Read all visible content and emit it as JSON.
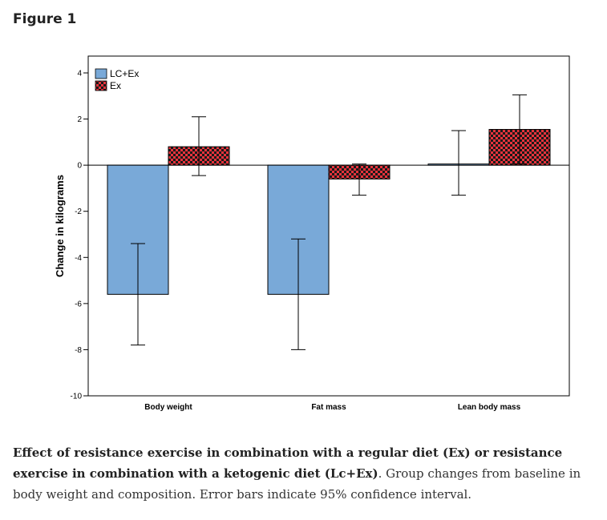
{
  "figure_label": "Figure 1",
  "caption": {
    "bold": "Effect of resistance exercise in combination with a regular diet (Ex) or resistance exercise in combination with a ketogenic diet (Lc+Ex)",
    "rest": ". Group changes from baseline in body weight and composition. Error bars indicate 95% confidence interval."
  },
  "chart_data": {
    "type": "bar",
    "title": "",
    "xlabel": "",
    "ylabel": "Change in kilograms",
    "ylim": [
      -10,
      4
    ],
    "yticks": [
      4,
      2,
      0,
      -2,
      -4,
      -6,
      -8,
      -10
    ],
    "grid": false,
    "legend_position": "top-left",
    "categories": [
      "Body weight",
      "Fat mass",
      "Lean body mass"
    ],
    "series": [
      {
        "name": "LC+Ex",
        "color": "#79a9d8",
        "pattern": "solid",
        "values": [
          -5.6,
          -5.6,
          0.05
        ],
        "ci_low": [
          -7.8,
          -8.0,
          -1.3
        ],
        "ci_high": [
          -3.4,
          -3.2,
          1.5
        ]
      },
      {
        "name": "Ex",
        "color": "#e8333c",
        "pattern": "checkered",
        "values": [
          0.8,
          -0.6,
          1.55
        ],
        "ci_low": [
          -0.45,
          -1.3,
          0.05
        ],
        "ci_high": [
          2.1,
          0.05,
          3.05
        ]
      }
    ]
  }
}
